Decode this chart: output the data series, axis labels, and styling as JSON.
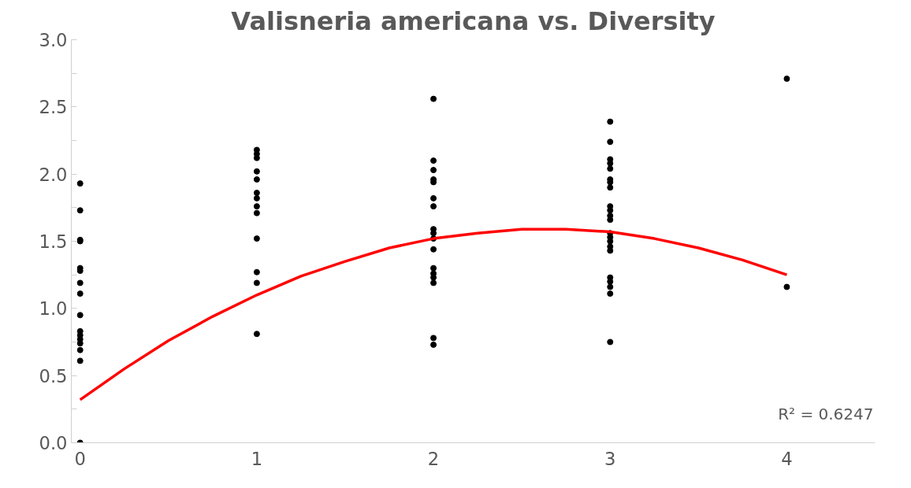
{
  "chart_data": {
    "type": "scatter",
    "title": "Valisneria americana vs. Diversity",
    "xlim": [
      -0.05,
      4.5
    ],
    "xticks": [
      0,
      1,
      2,
      3,
      4
    ],
    "ylim": [
      0,
      3
    ],
    "yticks": [
      {
        "value": 0,
        "label": "0.0"
      },
      {
        "value": 0.25,
        "label": null
      },
      0.5,
      {
        "value": 0.75,
        "label": null
      },
      {
        "value": 1,
        "label": "1.0"
      },
      {
        "value": 1.25,
        "label": null
      },
      1.5,
      {
        "value": 1.75,
        "label": null
      },
      {
        "value": 2,
        "label": "2.0"
      },
      {
        "value": 2.25,
        "label": null
      },
      2.5,
      {
        "value": 2.75,
        "label": null
      },
      {
        "value": 3,
        "label": "3.0"
      }
    ],
    "grid": false,
    "marker": "circle",
    "series": [
      {
        "color": "#000000",
        "x": [
          0,
          0,
          0,
          0,
          0,
          0,
          0,
          0,
          0,
          0,
          0,
          0,
          0,
          0,
          0,
          0,
          1,
          1,
          1,
          1,
          1,
          1,
          1,
          1,
          1,
          1,
          1,
          1,
          1,
          2,
          2,
          2,
          2,
          2,
          2,
          2,
          2,
          2,
          2,
          2,
          2,
          2,
          2,
          2,
          2,
          2,
          3,
          3,
          3,
          3,
          3,
          3,
          3,
          3,
          3,
          3,
          3,
          3,
          3,
          3,
          3,
          3,
          3,
          3,
          3,
          3,
          3,
          3,
          4,
          4
        ],
        "values": [
          1.93,
          1.73,
          1.51,
          1.5,
          1.3,
          1.28,
          1.19,
          1.11,
          0.95,
          0.83,
          0.8,
          0.77,
          0.74,
          0.69,
          0.61,
          0.0,
          2.18,
          2.15,
          2.12,
          2.02,
          1.96,
          1.86,
          1.82,
          1.76,
          1.71,
          1.52,
          1.27,
          1.19,
          0.81,
          2.56,
          2.1,
          2.03,
          1.96,
          1.94,
          1.82,
          1.76,
          1.59,
          1.56,
          1.52,
          1.44,
          1.3,
          1.26,
          1.23,
          1.19,
          0.78,
          0.73,
          2.39,
          2.24,
          2.11,
          2.08,
          2.04,
          1.96,
          1.94,
          1.9,
          1.76,
          1.73,
          1.69,
          1.66,
          1.56,
          1.53,
          1.5,
          1.46,
          1.43,
          1.23,
          1.2,
          1.16,
          1.11,
          0.75,
          2.71,
          1.16
        ]
      },
      {
        "type": "line",
        "marker": "none",
        "color": "#ff0000",
        "x": [
          0,
          0.25,
          0.5,
          0.75,
          1,
          1.25,
          1.5,
          1.75,
          2,
          2.25,
          2.5,
          2.75,
          3,
          3.25,
          3.5,
          3.75,
          4
        ],
        "values": [
          0.32,
          0.55,
          0.76,
          0.94,
          1.1,
          1.24,
          1.35,
          1.45,
          1.52,
          1.56,
          1.59,
          1.59,
          1.57,
          1.52,
          1.45,
          1.36,
          1.25
        ]
      }
    ],
    "annotations": [
      "R² = 0.6247"
    ]
  }
}
